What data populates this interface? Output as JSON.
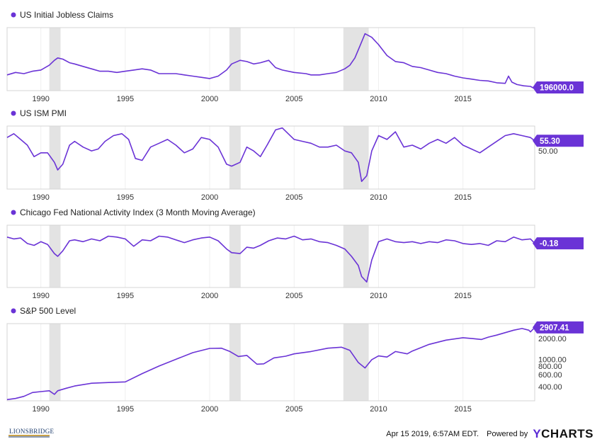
{
  "colors": {
    "line": "#6a33d6",
    "recession": "#e3e3e3",
    "border": "#d4d4d4",
    "axis_text": "#333333",
    "badge_text": "#ffffff"
  },
  "footer": {
    "timestamp": "Apr 15 2019, 6:57AM EDT.",
    "powered_by": "Powered by",
    "brand_y": "Y",
    "brand_rest": "CHARTS",
    "logo_text": "LIONSBRIDGE"
  },
  "chart_data": [
    {
      "type": "line",
      "title": "US Initial Jobless Claims",
      "x_ticks": [
        "1990",
        "1995",
        "2000",
        "2005",
        "2010",
        "2015"
      ],
      "y_ticks": [],
      "last_value_label": "196000.0",
      "recessions": [
        [
          "1990-07",
          "1991-03"
        ],
        [
          "2001-03",
          "2001-11"
        ],
        [
          "2007-12",
          "2009-06"
        ]
      ],
      "ylim": [
        180000,
        700000
      ],
      "series": [
        {
          "x": [
            1988.0,
            1988.5,
            1989.0,
            1989.5,
            1990.0,
            1990.5,
            1990.8,
            1991.0,
            1991.3,
            1991.7,
            1992.0,
            1992.5,
            1993.0,
            1993.5,
            1994.0,
            1994.5,
            1995.0,
            1995.5,
            1996.0,
            1996.5,
            1997.0,
            1997.5,
            1998.0,
            1998.5,
            1999.0,
            1999.5,
            2000.0,
            2000.5,
            2001.0,
            2001.3,
            2001.8,
            2002.2,
            2002.6,
            2003.0,
            2003.5,
            2003.9,
            2004.3,
            2005.0,
            2005.7,
            2006.0,
            2006.5,
            2007.0,
            2007.5,
            2008.0,
            2008.3,
            2008.6,
            2008.9,
            2009.2,
            2009.6,
            2010.0,
            2010.5,
            2011.0,
            2011.5,
            2012.0,
            2012.5,
            2013.0,
            2013.5,
            2014.0,
            2014.5,
            2015.0,
            2015.5,
            2016.0,
            2016.5,
            2017.0,
            2017.5,
            2017.7,
            2017.9,
            2018.2,
            2018.6,
            2019.0,
            2019.25
          ],
          "y": [
            310000,
            330000,
            320000,
            340000,
            350000,
            390000,
            430000,
            450000,
            440000,
            410000,
            400000,
            380000,
            360000,
            340000,
            340000,
            330000,
            340000,
            350000,
            360000,
            350000,
            320000,
            320000,
            320000,
            310000,
            300000,
            290000,
            280000,
            300000,
            350000,
            400000,
            430000,
            420000,
            400000,
            410000,
            430000,
            370000,
            350000,
            330000,
            320000,
            310000,
            310000,
            320000,
            330000,
            360000,
            390000,
            450000,
            550000,
            650000,
            620000,
            560000,
            470000,
            420000,
            410000,
            380000,
            370000,
            350000,
            330000,
            320000,
            300000,
            285000,
            275000,
            265000,
            260000,
            245000,
            240000,
            300000,
            250000,
            230000,
            220000,
            215000,
            196000
          ]
        }
      ]
    },
    {
      "type": "line",
      "title": "US ISM PMI",
      "x_ticks": [
        "1990",
        "1995",
        "2000",
        "2005",
        "2010",
        "2015"
      ],
      "y_ticks": [
        "50.00"
      ],
      "last_value_label": "55.30",
      "recessions": [
        [
          "1990-07",
          "1991-03"
        ],
        [
          "2001-03",
          "2001-11"
        ],
        [
          "2007-12",
          "2009-06"
        ]
      ],
      "ylim": [
        30,
        63
      ],
      "series": [
        {
          "x": [
            1988.0,
            1988.4,
            1988.8,
            1989.2,
            1989.6,
            1990.0,
            1990.4,
            1990.8,
            1991.0,
            1991.3,
            1991.7,
            1992.0,
            1992.5,
            1993.0,
            1993.4,
            1993.8,
            1994.3,
            1994.8,
            1995.2,
            1995.6,
            1996.0,
            1996.5,
            1997.0,
            1997.5,
            1998.0,
            1998.5,
            1999.0,
            1999.5,
            2000.0,
            2000.5,
            2001.0,
            2001.3,
            2001.8,
            2002.2,
            2002.6,
            2003.0,
            2003.4,
            2003.9,
            2004.3,
            2005.0,
            2005.5,
            2006.0,
            2006.5,
            2007.0,
            2007.5,
            2008.0,
            2008.4,
            2008.8,
            2009.0,
            2009.3,
            2009.6,
            2010.0,
            2010.5,
            2011.0,
            2011.5,
            2012.0,
            2012.5,
            2013.0,
            2013.5,
            2014.0,
            2014.5,
            2015.0,
            2015.5,
            2016.0,
            2016.5,
            2017.0,
            2017.5,
            2018.0,
            2018.5,
            2019.0,
            2019.25
          ],
          "y": [
            57,
            59,
            56,
            53,
            47,
            49,
            49,
            44,
            40,
            43,
            53,
            55,
            52,
            50,
            51,
            55,
            58,
            59,
            56,
            46,
            45,
            52,
            54,
            56,
            53,
            49,
            51,
            57,
            56,
            52,
            43,
            42,
            44,
            52,
            50,
            47,
            53,
            61,
            62,
            56,
            55,
            54,
            52,
            52,
            53,
            50,
            49,
            44,
            34,
            37,
            50,
            58,
            56,
            60,
            52,
            53,
            51,
            54,
            56,
            54,
            57,
            53,
            51,
            49,
            52,
            55,
            58,
            59,
            58,
            57,
            55.3
          ]
        }
      ]
    },
    {
      "type": "line",
      "title": "Chicago Fed National Activity Index (3 Month Moving Average)",
      "x_ticks": [
        "1990",
        "1995",
        "2000",
        "2005",
        "2010",
        "2015"
      ],
      "y_ticks": [],
      "last_value_label": "-0.18",
      "recessions": [
        [
          "1990-07",
          "1991-03"
        ],
        [
          "2001-03",
          "2001-11"
        ],
        [
          "2007-12",
          "2009-06"
        ]
      ],
      "ylim": [
        -5,
        1.8
      ],
      "series": [
        {
          "x": [
            1988.0,
            1988.4,
            1988.8,
            1989.2,
            1989.6,
            1990.0,
            1990.4,
            1990.8,
            1991.0,
            1991.3,
            1991.7,
            1992.0,
            1992.5,
            1993.0,
            1993.5,
            1994.0,
            1994.5,
            1995.0,
            1995.5,
            1996.0,
            1996.5,
            1997.0,
            1997.5,
            1998.0,
            1998.5,
            1999.0,
            1999.5,
            2000.0,
            2000.5,
            2001.0,
            2001.3,
            2001.8,
            2002.2,
            2002.6,
            2003.0,
            2003.5,
            2004.0,
            2004.5,
            2005.0,
            2005.5,
            2006.0,
            2006.5,
            2007.0,
            2007.5,
            2008.0,
            2008.4,
            2008.8,
            2009.0,
            2009.3,
            2009.6,
            2010.0,
            2010.5,
            2011.0,
            2011.5,
            2012.0,
            2012.5,
            2013.0,
            2013.5,
            2014.0,
            2014.5,
            2015.0,
            2015.5,
            2016.0,
            2016.5,
            2017.0,
            2017.5,
            2018.0,
            2018.5,
            2019.0,
            2019.25
          ],
          "y": [
            0.5,
            0.3,
            0.4,
            -0.2,
            -0.4,
            0.0,
            -0.3,
            -1.3,
            -1.6,
            -1.0,
            0.1,
            0.2,
            0.0,
            0.3,
            0.1,
            0.6,
            0.5,
            0.3,
            -0.5,
            0.2,
            0.1,
            0.6,
            0.5,
            0.2,
            -0.1,
            0.2,
            0.4,
            0.5,
            0.1,
            -0.8,
            -1.2,
            -1.3,
            -0.6,
            -0.7,
            -0.4,
            0.1,
            0.4,
            0.3,
            0.6,
            0.2,
            0.3,
            0.0,
            -0.1,
            -0.4,
            -0.8,
            -1.6,
            -2.6,
            -3.8,
            -4.4,
            -2.0,
            0.0,
            0.3,
            0.0,
            -0.1,
            0.0,
            -0.2,
            0.0,
            -0.1,
            0.2,
            0.1,
            -0.2,
            -0.3,
            -0.2,
            -0.4,
            0.1,
            0.0,
            0.5,
            0.2,
            0.3,
            -0.18
          ]
        }
      ]
    },
    {
      "type": "line",
      "title": "S&P 500 Level",
      "x_ticks": [
        "1990",
        "1995",
        "2000",
        "2005",
        "2010",
        "2015"
      ],
      "y_ticks": [
        "400.00",
        "600.00",
        "800.00",
        "1000.00",
        "2000.00"
      ],
      "y_scale": "log",
      "last_value_label": "2907.41",
      "recessions": [
        [
          "1990-07",
          "1991-03"
        ],
        [
          "2001-03",
          "2001-11"
        ],
        [
          "2007-12",
          "2009-06"
        ]
      ],
      "ylim": [
        250,
        3300
      ],
      "series": [
        {
          "x": [
            1988.0,
            1988.5,
            1989.0,
            1989.5,
            1990.0,
            1990.5,
            1990.8,
            1991.0,
            1991.5,
            1992.0,
            1993.0,
            1994.0,
            1995.0,
            1996.0,
            1997.0,
            1998.0,
            1999.0,
            2000.0,
            2000.7,
            2001.2,
            2001.7,
            2002.2,
            2002.8,
            2003.2,
            2003.8,
            2004.5,
            2005.0,
            2006.0,
            2007.0,
            2007.8,
            2008.3,
            2008.8,
            2009.2,
            2009.6,
            2010.0,
            2010.5,
            2011.0,
            2011.7,
            2012.0,
            2013.0,
            2014.0,
            2015.0,
            2015.6,
            2016.1,
            2016.5,
            2017.0,
            2018.0,
            2018.5,
            2018.9,
            2019.0,
            2019.25
          ],
          "y": [
            260,
            270,
            290,
            330,
            340,
            350,
            310,
            350,
            380,
            410,
            450,
            460,
            470,
            620,
            800,
            1000,
            1250,
            1440,
            1450,
            1300,
            1100,
            1140,
            850,
            860,
            1050,
            1110,
            1200,
            1300,
            1450,
            1500,
            1350,
            900,
            750,
            990,
            1120,
            1080,
            1300,
            1200,
            1320,
            1650,
            1900,
            2060,
            2000,
            1940,
            2100,
            2250,
            2650,
            2800,
            2650,
            2500,
            2907.41
          ]
        }
      ]
    }
  ]
}
